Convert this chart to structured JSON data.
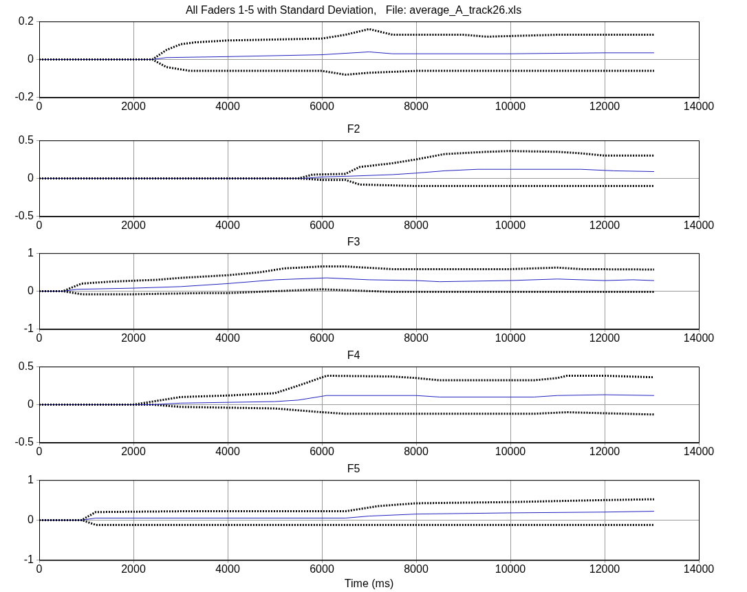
{
  "chart_data": [
    {
      "type": "line",
      "title": "All Faders 1-5 with Standard Deviation,   File: average_A_track26.xls",
      "xlim": [
        0,
        14000
      ],
      "xticks": [
        0,
        2000,
        4000,
        6000,
        8000,
        10000,
        12000,
        14000
      ],
      "ylim": [
        -0.2,
        0.2
      ],
      "yticks": [
        -0.2,
        0,
        0.2
      ],
      "grid": true,
      "legend": false,
      "series": [
        {
          "color": "#000000",
          "line_style": "dotted",
          "x": [
            0,
            2400,
            2700,
            3000,
            3300,
            4000,
            6000,
            6500,
            7000,
            7500,
            9000,
            9500,
            11000,
            13050
          ],
          "values": [
            0,
            0,
            0.05,
            0.08,
            0.09,
            0.1,
            0.11,
            0.13,
            0.16,
            0.13,
            0.13,
            0.12,
            0.13,
            0.13
          ]
        },
        {
          "color": "#2020c0",
          "line_style": "solid",
          "x": [
            0,
            2400,
            2700,
            4000,
            6000,
            7000,
            7500,
            10000,
            12000,
            13050
          ],
          "values": [
            0,
            0,
            0.01,
            0.015,
            0.025,
            0.04,
            0.03,
            0.03,
            0.035,
            0.035
          ]
        },
        {
          "color": "#000000",
          "line_style": "dotted",
          "x": [
            0,
            2400,
            2700,
            3200,
            6000,
            6500,
            7000,
            8000,
            13050
          ],
          "values": [
            0,
            0,
            -0.04,
            -0.06,
            -0.06,
            -0.08,
            -0.07,
            -0.06,
            -0.06
          ]
        }
      ]
    },
    {
      "type": "line",
      "title": "F2",
      "xlim": [
        0,
        14000
      ],
      "xticks": [
        0,
        2000,
        4000,
        6000,
        8000,
        10000,
        12000,
        14000
      ],
      "ylim": [
        -0.5,
        0.5
      ],
      "yticks": [
        -0.5,
        0,
        0.5
      ],
      "grid": true,
      "legend": false,
      "series": [
        {
          "color": "#000000",
          "line_style": "dotted",
          "x": [
            0,
            5500,
            5800,
            6500,
            6800,
            7500,
            8000,
            8600,
            9500,
            10000,
            11000,
            11500,
            12000,
            13050
          ],
          "values": [
            0,
            0,
            0.05,
            0.06,
            0.15,
            0.2,
            0.25,
            0.32,
            0.35,
            0.36,
            0.35,
            0.33,
            0.3,
            0.3
          ]
        },
        {
          "color": "#2020c0",
          "line_style": "solid",
          "x": [
            0,
            5600,
            6000,
            6600,
            7500,
            8000,
            8600,
            9300,
            11500,
            12200,
            13050
          ],
          "values": [
            0,
            0,
            0.02,
            0.03,
            0.05,
            0.07,
            0.1,
            0.12,
            0.12,
            0.1,
            0.09
          ]
        },
        {
          "color": "#000000",
          "line_style": "dotted",
          "x": [
            0,
            5500,
            6000,
            6500,
            6800,
            8000,
            13050
          ],
          "values": [
            0,
            0,
            -0.02,
            -0.02,
            -0.08,
            -0.1,
            -0.1
          ]
        }
      ]
    },
    {
      "type": "line",
      "title": "F3",
      "xlim": [
        0,
        14000
      ],
      "xticks": [
        0,
        2000,
        4000,
        6000,
        8000,
        10000,
        12000,
        14000
      ],
      "ylim": [
        -1,
        1
      ],
      "yticks": [
        -1,
        0,
        1
      ],
      "grid": true,
      "legend": false,
      "series": [
        {
          "color": "#000000",
          "line_style": "dotted",
          "x": [
            0,
            500,
            900,
            1500,
            2500,
            3000,
            4000,
            4700,
            5200,
            6000,
            6500,
            7500,
            10000,
            11000,
            11500,
            13050
          ],
          "values": [
            0,
            0,
            0.2,
            0.25,
            0.3,
            0.35,
            0.42,
            0.5,
            0.6,
            0.65,
            0.65,
            0.58,
            0.58,
            0.62,
            0.58,
            0.57
          ]
        },
        {
          "color": "#2020c0",
          "line_style": "solid",
          "x": [
            0,
            500,
            800,
            2000,
            3000,
            4000,
            5000,
            6100,
            7000,
            8000,
            8500,
            10000,
            11000,
            12000,
            12600,
            13050
          ],
          "values": [
            0,
            0,
            0.05,
            0.08,
            0.12,
            0.2,
            0.3,
            0.35,
            0.3,
            0.28,
            0.25,
            0.28,
            0.32,
            0.28,
            0.3,
            0.28
          ]
        },
        {
          "color": "#000000",
          "line_style": "dotted",
          "x": [
            0,
            500,
            900,
            2000,
            3500,
            4000,
            5000,
            6000,
            7500,
            13050
          ],
          "values": [
            0,
            0,
            -0.08,
            -0.08,
            -0.05,
            -0.05,
            0,
            0.05,
            -0.02,
            -0.02
          ]
        }
      ]
    },
    {
      "type": "line",
      "title": "F4",
      "xlim": [
        0,
        14000
      ],
      "xticks": [
        0,
        2000,
        4000,
        6000,
        8000,
        10000,
        12000,
        14000
      ],
      "ylim": [
        -0.5,
        0.5
      ],
      "yticks": [
        -0.5,
        0,
        0.5
      ],
      "grid": true,
      "legend": false,
      "series": [
        {
          "color": "#000000",
          "line_style": "dotted",
          "x": [
            0,
            2000,
            2500,
            3000,
            4000,
            5000,
            5500,
            6100,
            7500,
            8000,
            8500,
            10500,
            11000,
            11200,
            12000,
            13050
          ],
          "values": [
            0,
            0,
            0.05,
            0.1,
            0.12,
            0.15,
            0.25,
            0.38,
            0.37,
            0.35,
            0.32,
            0.32,
            0.35,
            0.38,
            0.38,
            0.36
          ]
        },
        {
          "color": "#2020c0",
          "line_style": "solid",
          "x": [
            0,
            2400,
            3000,
            5000,
            5500,
            6100,
            8000,
            8500,
            10500,
            11000,
            12000,
            13050
          ],
          "values": [
            0,
            0,
            0.02,
            0.04,
            0.06,
            0.12,
            0.12,
            0.1,
            0.1,
            0.12,
            0.13,
            0.12
          ]
        },
        {
          "color": "#000000",
          "line_style": "dotted",
          "x": [
            0,
            2400,
            3000,
            5000,
            6000,
            6500,
            8000,
            10500,
            11200,
            13050
          ],
          "values": [
            0,
            0,
            -0.03,
            -0.05,
            -0.1,
            -0.12,
            -0.12,
            -0.12,
            -0.1,
            -0.13
          ]
        }
      ]
    },
    {
      "type": "line",
      "title": "F5",
      "xlabel": "Time (ms)",
      "xlim": [
        0,
        14000
      ],
      "xticks": [
        0,
        2000,
        4000,
        6000,
        8000,
        10000,
        12000,
        14000
      ],
      "ylim": [
        -1,
        1
      ],
      "yticks": [
        -1,
        0,
        1
      ],
      "grid": true,
      "legend": false,
      "series": [
        {
          "color": "#000000",
          "line_style": "dotted",
          "x": [
            0,
            900,
            1200,
            3000,
            6500,
            7200,
            8000,
            10000,
            12000,
            13050
          ],
          "values": [
            0,
            0,
            0.2,
            0.22,
            0.22,
            0.35,
            0.42,
            0.45,
            0.5,
            0.52
          ]
        },
        {
          "color": "#2020c0",
          "line_style": "solid",
          "x": [
            0,
            900,
            1200,
            6500,
            7000,
            8000,
            10000,
            12000,
            13050
          ],
          "values": [
            0,
            0,
            0.05,
            0.05,
            0.1,
            0.15,
            0.18,
            0.2,
            0.22
          ]
        },
        {
          "color": "#000000",
          "line_style": "dotted",
          "x": [
            0,
            900,
            1200,
            6500,
            13050
          ],
          "values": [
            0,
            0,
            -0.12,
            -0.12,
            -0.12
          ]
        }
      ]
    }
  ]
}
